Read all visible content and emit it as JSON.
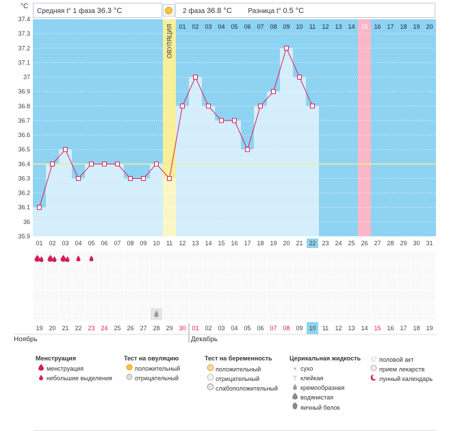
{
  "header": {
    "phase1_label": "Средняя t° 1 фаза",
    "phase1_value": "36.3 °C",
    "phase2_label": "2 фаза",
    "phase2_value": "36.8 °C",
    "diff_label": "Разница t°",
    "diff_value": "0.5 °C",
    "unit": "°C",
    "ovulation_label": "ОВУЛЯЦИЯ"
  },
  "chart_data": {
    "type": "line",
    "title": "Средняя t° 1 фаза 36.3 °C",
    "ylabel": "°C",
    "ylim": [
      35.9,
      37.4
    ],
    "yticks": [
      "37.4",
      "37.3",
      "37.2",
      "37.1",
      "37",
      "36.9",
      "36.8",
      "36.7",
      "36.6",
      "36.5",
      "36.4",
      "36.3",
      "36.2",
      "36.1",
      "36",
      "35.9"
    ],
    "cycle_days": [
      "01",
      "02",
      "03",
      "04",
      "05",
      "06",
      "07",
      "08",
      "09",
      "10",
      "11",
      "12",
      "13",
      "14",
      "15",
      "16",
      "17",
      "18",
      "19",
      "20",
      "21",
      "22",
      "23",
      "24",
      "25",
      "26",
      "27",
      "28",
      "29",
      "30",
      "31"
    ],
    "phase2_days": [
      "01",
      "02",
      "03",
      "04",
      "05",
      "06",
      "07",
      "08",
      "09",
      "10",
      "11",
      "12",
      "13",
      "14",
      "15",
      "16",
      "17",
      "18",
      "19",
      "20"
    ],
    "temperatures": [
      36.1,
      36.4,
      36.5,
      36.3,
      36.4,
      36.4,
      36.4,
      36.3,
      36.3,
      36.4,
      36.3,
      36.8,
      37.0,
      36.8,
      36.7,
      36.7,
      36.5,
      36.8,
      36.9,
      37.2,
      37.0,
      36.8
    ],
    "coverline": 36.4,
    "ovulation_day_index": 10,
    "current_day_index": 21,
    "highlight_phase2_day": "15",
    "dates": [
      "19",
      "20",
      "21",
      "22",
      "23",
      "24",
      "25",
      "26",
      "27",
      "28",
      "29",
      "30",
      "01",
      "02",
      "03",
      "04",
      "05",
      "06",
      "07",
      "08",
      "09",
      "10",
      "11",
      "12",
      "13",
      "14",
      "15",
      "16",
      "17",
      "18",
      "19"
    ],
    "red_date_indices": [
      4,
      5,
      11,
      12,
      18,
      19,
      26
    ],
    "months": [
      "Ноябрь",
      "Декабрь"
    ],
    "menstruation": [
      "big",
      "big",
      "big",
      "small",
      "small"
    ],
    "ovulation_test_negative_index": 9
  },
  "legend": {
    "menstruation": {
      "title": "Менструация",
      "items": [
        "менструация",
        "небольшие выделения"
      ]
    },
    "ovulation_test": {
      "title": "Тест на овуляцию",
      "items": [
        "положительный",
        "отрицательный"
      ]
    },
    "pregnancy_test": {
      "title": "Тест на беременность",
      "items": [
        "положительный",
        "отрицательный",
        "слабоположительный"
      ]
    },
    "cervical": {
      "title": "Церикальная жидкость",
      "items": [
        "сухо",
        "клейкая",
        "кремообразная",
        "водянистая",
        "яичный белок"
      ]
    },
    "other": {
      "items": [
        "половой акт",
        "прием лекарств",
        "лунный календарь"
      ]
    }
  },
  "colors": {
    "bg_blue": "#8fd3f2",
    "bar_blue": "#d4eefb",
    "grid": "#e9f6fd",
    "line": "#d61c5c",
    "ovulation": "#f7ef9a",
    "ovulation_light": "#fbf6c6",
    "highlight_pink": "#f9b7c8",
    "current_day": "#8fd3f2",
    "coverline": "#f4ea9a"
  }
}
